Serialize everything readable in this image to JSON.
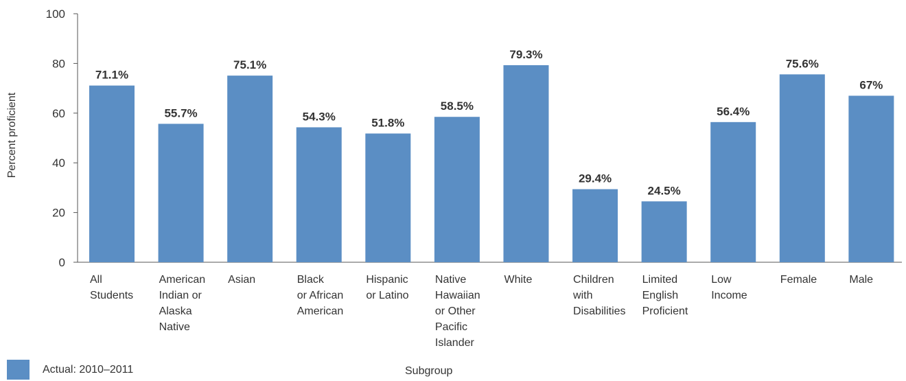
{
  "chart_data": {
    "type": "bar",
    "categories": [
      [
        "All",
        "Students"
      ],
      [
        "American",
        "Indian or",
        "Alaska",
        "Native"
      ],
      [
        "Asian"
      ],
      [
        "Black",
        "or African",
        "American"
      ],
      [
        "Hispanic",
        "or Latino"
      ],
      [
        "Native",
        "Hawaiian",
        "or Other",
        "Pacific",
        "Islander"
      ],
      [
        "White"
      ],
      [
        "Children",
        "with",
        "Disabilities"
      ],
      [
        "Limited",
        "English",
        "Proficient"
      ],
      [
        "Low",
        "Income"
      ],
      [
        "Female"
      ],
      [
        "Male"
      ]
    ],
    "values": [
      71.1,
      55.7,
      75.1,
      54.3,
      51.8,
      58.5,
      79.3,
      29.4,
      24.5,
      56.4,
      75.6,
      67
    ],
    "data_labels": [
      "71.1%",
      "55.7%",
      "75.1%",
      "54.3%",
      "51.8%",
      "58.5%",
      "79.3%",
      "29.4%",
      "24.5%",
      "56.4%",
      "75.6%",
      "67%"
    ],
    "ylabel": "Percent proficient",
    "xlabel": "Subgroup",
    "ylim": [
      0,
      100
    ],
    "yticks": [
      0,
      20,
      40,
      60,
      80,
      100
    ],
    "grid": false,
    "legend_position": "bottom-left",
    "bar_color": "#5b8ec4",
    "axis_color": "#555555",
    "series": [
      {
        "name": "Actual: 2010–2011",
        "values": [
          71.1,
          55.7,
          75.1,
          54.3,
          51.8,
          58.5,
          79.3,
          29.4,
          24.5,
          56.4,
          75.6,
          67
        ]
      }
    ]
  }
}
